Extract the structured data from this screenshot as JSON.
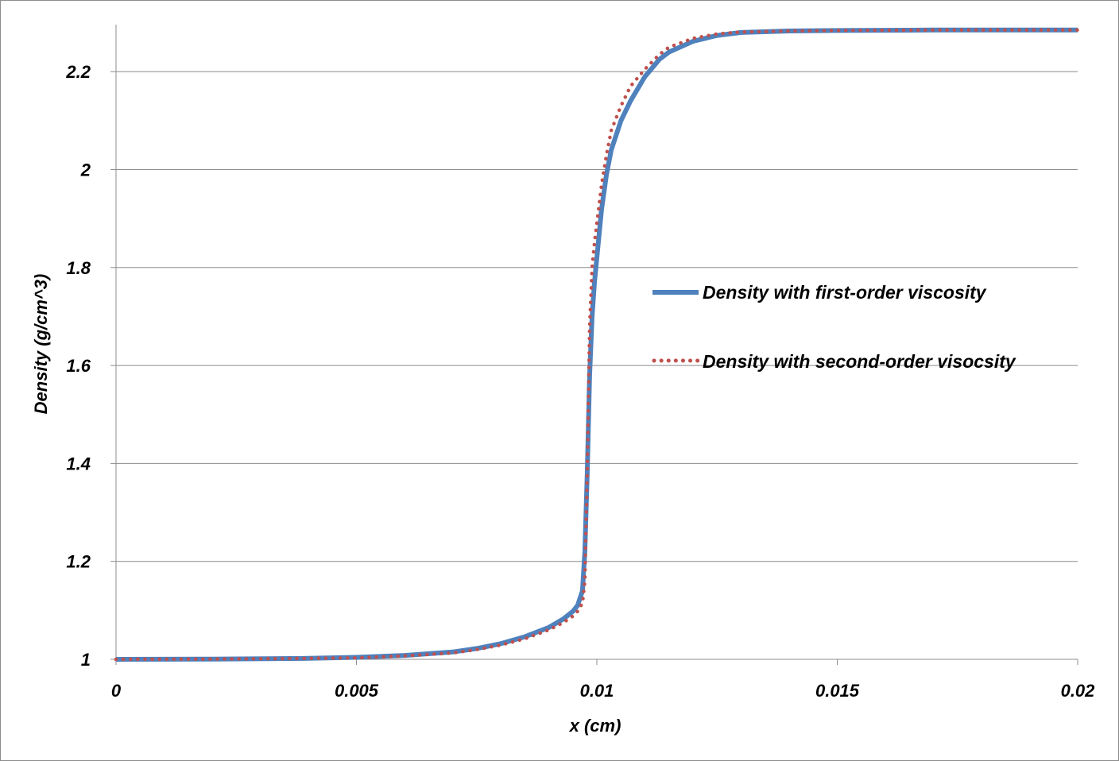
{
  "chart_data": {
    "type": "line",
    "title": "",
    "xlabel": "x (cm)",
    "ylabel": "Density (g/cm^3)",
    "xlim": [
      0,
      0.02
    ],
    "ylim": [
      1,
      2.3
    ],
    "x_ticks": [
      "0",
      "0.005",
      "0.01",
      "0.015",
      "0.02"
    ],
    "y_ticks": [
      "1",
      "1.2",
      "1.4",
      "1.6",
      "1.8",
      "2",
      "2.2"
    ],
    "grid": "horizontal major gridlines",
    "legend_position": "right",
    "series": [
      {
        "name": "Density with first-order viscosity",
        "color": "#4f81bd",
        "style": "solid",
        "x": [
          0,
          0.002,
          0.004,
          0.005,
          0.006,
          0.007,
          0.0075,
          0.008,
          0.0085,
          0.009,
          0.0093,
          0.0095,
          0.0096,
          0.0097,
          0.00975,
          0.0098,
          0.00985,
          0.0099,
          0.00995,
          0.01,
          0.01005,
          0.0101,
          0.0102,
          0.0103,
          0.0105,
          0.0107,
          0.011,
          0.0113,
          0.0115,
          0.012,
          0.0125,
          0.013,
          0.014,
          0.015,
          0.017,
          0.02
        ],
        "y": [
          1.0,
          1.0005,
          1.002,
          1.004,
          1.008,
          1.015,
          1.022,
          1.032,
          1.046,
          1.065,
          1.082,
          1.098,
          1.11,
          1.14,
          1.22,
          1.38,
          1.58,
          1.7,
          1.77,
          1.82,
          1.87,
          1.92,
          1.99,
          2.04,
          2.1,
          2.14,
          2.19,
          2.225,
          2.24,
          2.262,
          2.274,
          2.28,
          2.283,
          2.284,
          2.285,
          2.285
        ]
      },
      {
        "name": "Density with second-order visocsity",
        "color": "#c0504d",
        "style": "dotted",
        "x": [
          0,
          0.002,
          0.004,
          0.005,
          0.006,
          0.007,
          0.0075,
          0.008,
          0.0085,
          0.009,
          0.0093,
          0.0095,
          0.0096,
          0.0097,
          0.00975,
          0.0098,
          0.00985,
          0.0099,
          0.00995,
          0.01,
          0.01005,
          0.0101,
          0.0102,
          0.0103,
          0.0105,
          0.0107,
          0.011,
          0.0113,
          0.0115,
          0.012,
          0.0125,
          0.013,
          0.014,
          0.015,
          0.017,
          0.02
        ],
        "y": [
          1.0,
          1.0005,
          1.002,
          1.003,
          1.007,
          1.013,
          1.02,
          1.029,
          1.042,
          1.06,
          1.075,
          1.088,
          1.098,
          1.115,
          1.16,
          1.38,
          1.68,
          1.8,
          1.85,
          1.89,
          1.93,
          1.97,
          2.03,
          2.08,
          2.13,
          2.17,
          2.205,
          2.235,
          2.25,
          2.268,
          2.277,
          2.281,
          2.283,
          2.284,
          2.285,
          2.285
        ]
      }
    ]
  }
}
